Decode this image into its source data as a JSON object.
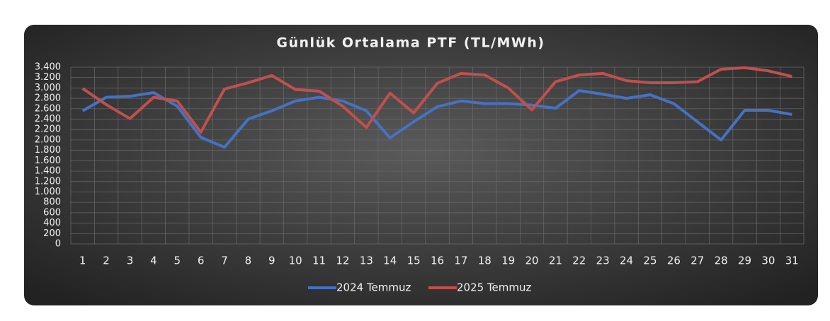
{
  "chart_data": {
    "type": "line",
    "title": "Günlük Ortalama PTF (TL/MWh)",
    "categories": [
      "1",
      "2",
      "3",
      "4",
      "5",
      "6",
      "7",
      "8",
      "9",
      "10",
      "11",
      "12",
      "13",
      "14",
      "15",
      "16",
      "17",
      "18",
      "19",
      "20",
      "21",
      "22",
      "23",
      "24",
      "25",
      "26",
      "27",
      "28",
      "29",
      "30",
      "31"
    ],
    "series": [
      {
        "name": "2024 Temmuz",
        "color": "#4472c4",
        "values": [
          2560,
          2820,
          2840,
          2910,
          2650,
          2050,
          1860,
          2400,
          2560,
          2750,
          2820,
          2750,
          2560,
          2040,
          2350,
          2640,
          2750,
          2700,
          2700,
          2670,
          2610,
          2950,
          2880,
          2800,
          2870,
          2700,
          2350,
          2000,
          2570,
          2570,
          2490
        ]
      },
      {
        "name": "2025 Temmuz",
        "color": "#c0504d",
        "values": [
          2990,
          2680,
          2410,
          2820,
          2750,
          2150,
          2980,
          3100,
          3240,
          2970,
          2940,
          2650,
          2240,
          2900,
          2520,
          3090,
          3280,
          3250,
          3000,
          2580,
          3120,
          3250,
          3280,
          3140,
          3100,
          3100,
          3120,
          3360,
          3390,
          3330,
          3220
        ]
      }
    ],
    "ylim": [
      0,
      3400
    ],
    "yticks": [
      0,
      200,
      400,
      600,
      800,
      {
        "value": 1000,
        "label": "1.000"
      },
      {
        "value": 1200,
        "label": "1.200"
      },
      {
        "value": 1400,
        "label": "1.400"
      },
      {
        "value": 1600,
        "label": "1.600"
      },
      {
        "value": 1800,
        "label": "1.800"
      },
      {
        "value": 2000,
        "label": "2.000"
      },
      {
        "value": 2200,
        "label": "2.200"
      },
      {
        "value": 2400,
        "label": "2.400"
      },
      {
        "value": 2600,
        "label": "2.600"
      },
      {
        "value": 2800,
        "label": "2.800"
      },
      {
        "value": 3000,
        "label": "3.000"
      },
      {
        "value": 3200,
        "label": "3.200"
      },
      {
        "value": 3400,
        "label": "3.400"
      }
    ],
    "grid": true,
    "legend": "bottom"
  }
}
